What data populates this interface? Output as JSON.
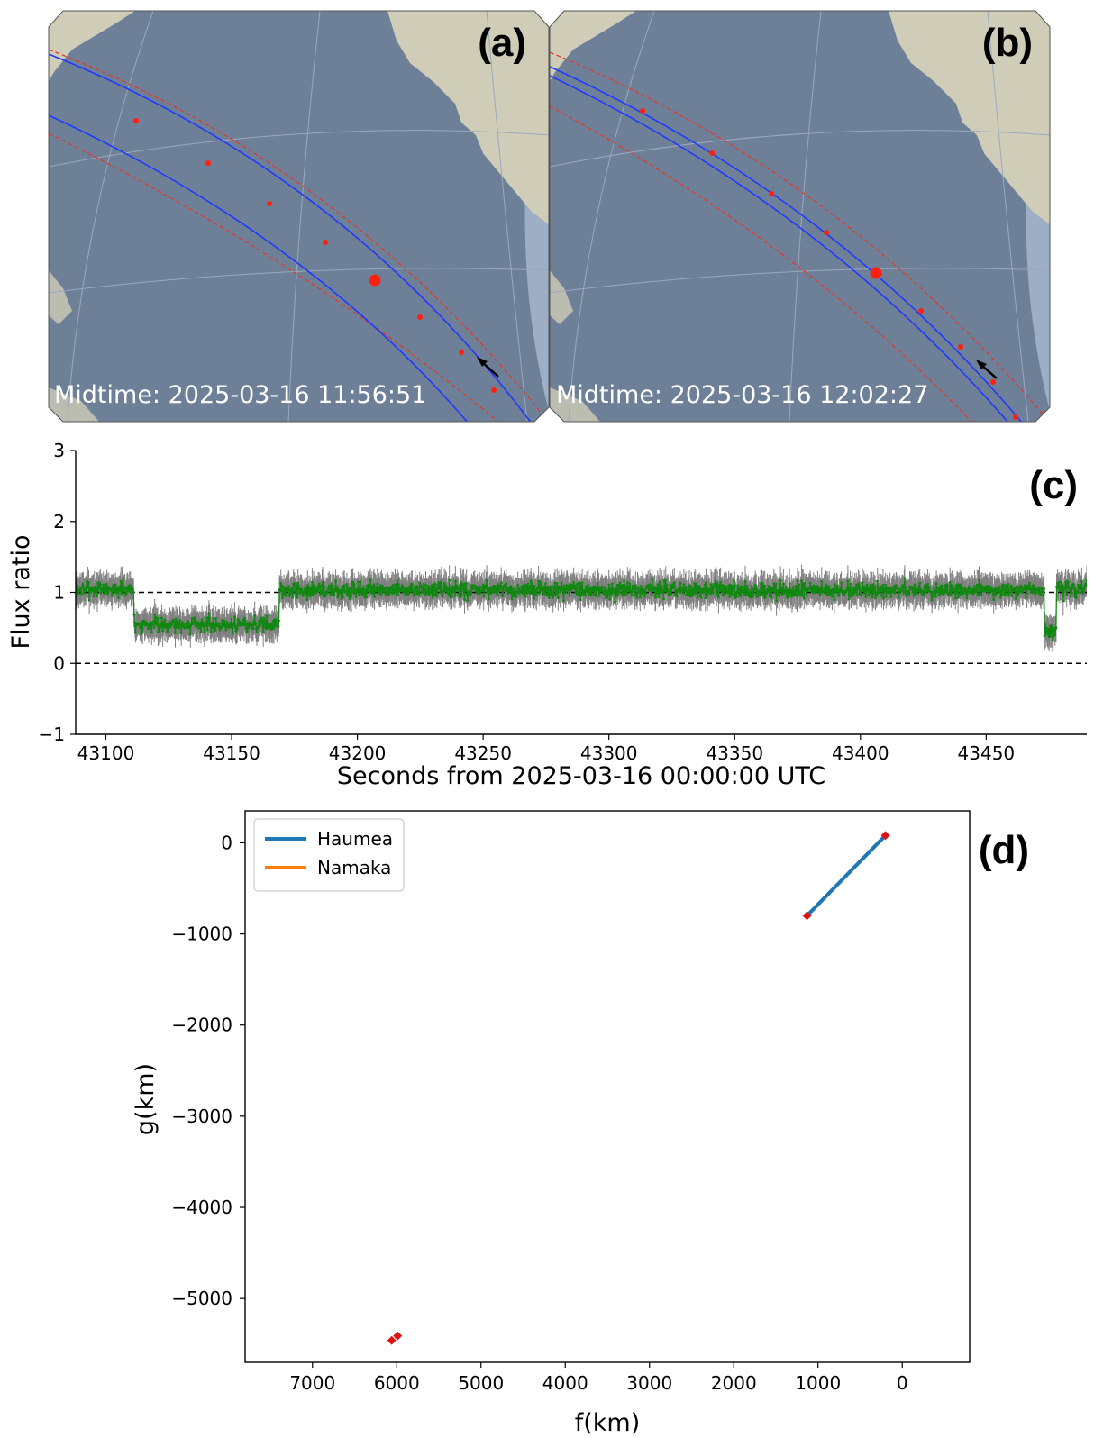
{
  "maps": [
    {
      "label": "(a)",
      "midtime": "Midtime: 2025-03-16 11:56:51",
      "colors": {
        "ocean": "#6e8098",
        "land": "#cfccb8",
        "night_shade": "#b7c6dd",
        "path": "#2038ff",
        "uncertainty": "#e03a2a",
        "marker": "#ff2010"
      },
      "icons": [
        "direction-arrow-icon",
        "shadow-center-marker-icon"
      ]
    },
    {
      "label": "(b)",
      "midtime": "Midtime: 2025-03-16 12:02:27",
      "colors": {
        "ocean": "#6e8098",
        "land": "#cfccb8",
        "night_shade": "#b7c6dd",
        "path": "#2038ff",
        "uncertainty": "#e03a2a",
        "marker": "#ff2010"
      },
      "icons": [
        "direction-arrow-icon",
        "shadow-center-marker-icon"
      ]
    }
  ],
  "lightcurve": {
    "label": "(c)",
    "xlabel": "Seconds from 2025-03-16 00:00:00 UTC",
    "ylabel": "Flux ratio",
    "xticks": [
      "43100",
      "43150",
      "43200",
      "43250",
      "43300",
      "43350",
      "43400",
      "43450"
    ],
    "yticks": [
      "3",
      "2",
      "1",
      "0",
      "−1"
    ]
  },
  "fg": {
    "label": "(d)",
    "xlabel": "f(km)",
    "ylabel": "g(km)",
    "xticks": [
      "7000",
      "6000",
      "5000",
      "4000",
      "3000",
      "2000",
      "1000",
      "0"
    ],
    "yticks": [
      "0",
      "−1000",
      "−2000",
      "−3000",
      "−4000",
      "−5000"
    ],
    "legend": [
      "Haumea",
      "Namaka"
    ]
  },
  "chart_data": [
    {
      "type": "scatter",
      "panel": "c",
      "xlabel": "Seconds from 2025-03-16 00:00:00 UTC",
      "ylabel": "Flux ratio",
      "xlim": [
        43088,
        43490
      ],
      "ylim": [
        -1,
        3
      ],
      "grid": false,
      "reference_lines_y": [
        1,
        0
      ],
      "colors": {
        "points": "#118811",
        "errorbars": "#808080",
        "reference": "#000000"
      },
      "segments": [
        {
          "x_start": 43088,
          "x_end": 43110,
          "flux": 1.05
        },
        {
          "x_start": 43111,
          "x_end": 43168,
          "flux": 0.55
        },
        {
          "x_start": 43169,
          "x_end": 43472,
          "flux": 1.03
        },
        {
          "x_start": 43473,
          "x_end": 43477,
          "flux": 0.45
        },
        {
          "x_start": 43478,
          "x_end": 43490,
          "flux": 1.05
        }
      ],
      "noise_sigma": 0.08,
      "errorbar_halfwidth": 0.18
    },
    {
      "type": "line",
      "panel": "d",
      "xlabel": "f(km)",
      "ylabel": "g(km)",
      "xlim": [
        7800,
        -800
      ],
      "ylim": [
        -5700,
        350
      ],
      "legend": "top-left",
      "series": [
        {
          "name": "Haumea",
          "color": "#1f77b4",
          "x": [
            1130,
            200
          ],
          "y": [
            -800,
            80
          ]
        },
        {
          "name": "Namaka",
          "color": "#ff7f0e",
          "x": [],
          "y": []
        }
      ],
      "markers": {
        "color": "#dd1111",
        "points": [
          [
            1130,
            -800
          ],
          [
            200,
            80
          ],
          [
            6060,
            -5460
          ],
          [
            5990,
            -5410
          ]
        ]
      }
    }
  ]
}
